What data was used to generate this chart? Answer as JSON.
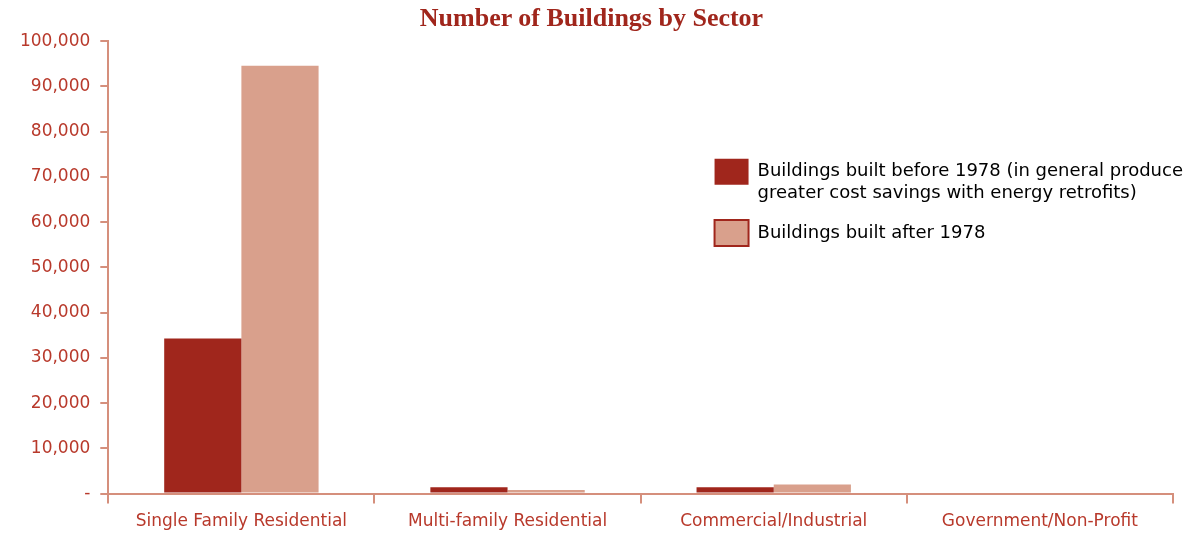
{
  "chart_data": {
    "type": "bar",
    "title": "Number of Buildings by Sector",
    "categories": [
      "Single Family Residential",
      "Multi-family Residential",
      "Commercial/Industrial",
      "Government/Non-Profit"
    ],
    "series": [
      {
        "name": "Buildings built before 1978 (in general produce greater cost savings with energy retrofits)",
        "color": "#a0261c",
        "values": [
          34300,
          1400,
          1400,
          0
        ]
      },
      {
        "name": "Buildings built after 1978",
        "color": "#d9a08c",
        "values": [
          94600,
          800,
          2000,
          0
        ]
      }
    ],
    "ylim": [
      0,
      100000
    ],
    "yticks": [
      {
        "value": 0,
        "label": "-"
      },
      {
        "value": 10000,
        "label": "10,000"
      },
      {
        "value": 20000,
        "label": "20,000"
      },
      {
        "value": 30000,
        "label": "30,000"
      },
      {
        "value": 40000,
        "label": "40,000"
      },
      {
        "value": 50000,
        "label": "50,000"
      },
      {
        "value": 60000,
        "label": "60,000"
      },
      {
        "value": 70000,
        "label": "70,000"
      },
      {
        "value": 80000,
        "label": "80,000"
      },
      {
        "value": 90000,
        "label": "90,000"
      },
      {
        "value": 100000,
        "label": "100,000"
      }
    ],
    "grid": false,
    "legend": "right"
  }
}
